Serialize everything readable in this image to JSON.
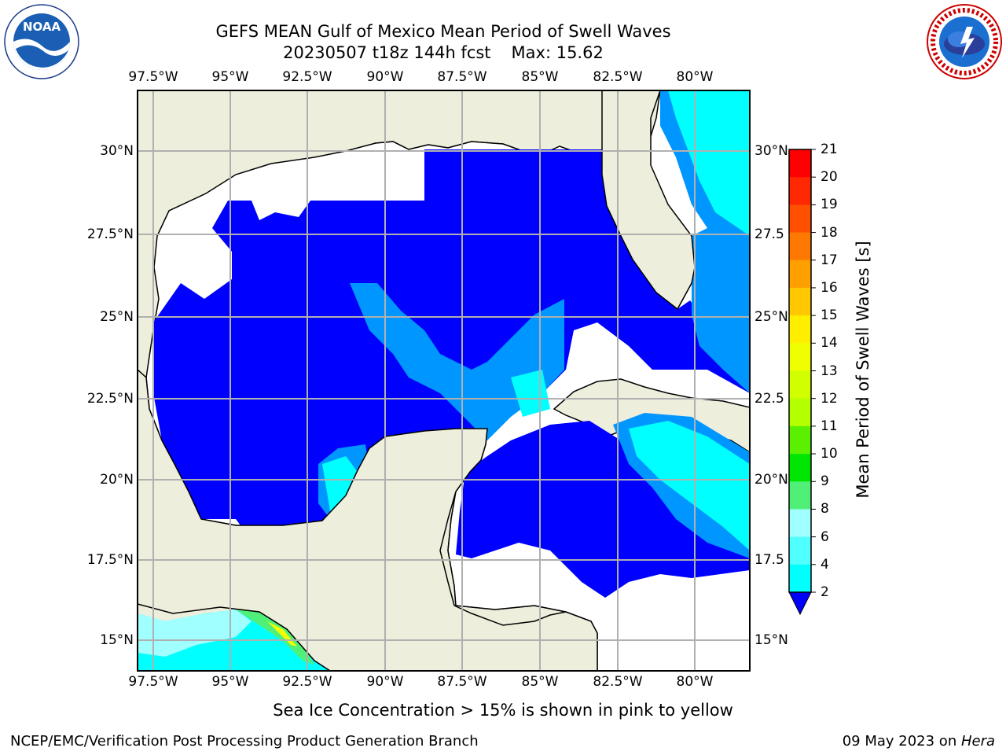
{
  "title_line1": "GEFS MEAN Gulf of Mexico Mean Period of Swell Waves",
  "title_line2_date": "20230507 t18z 144h fcst",
  "title_line2_max": "Max: 15.62",
  "top_lon_labels": [
    "97.5°W",
    "95°W",
    "92.5°W",
    "90°W",
    "87.5°W",
    "85°W",
    "82.5°W",
    "80°W"
  ],
  "bottom_lon_labels": [
    "97.5°W",
    "95°W",
    "92.5°W",
    "90°W",
    "87.5°W",
    "85°W",
    "82.5°W",
    "80°W"
  ],
  "left_lat_labels": [
    "30°N",
    "27.5°N",
    "25°N",
    "22.5°N",
    "20°N",
    "17.5°N",
    "15°N"
  ],
  "right_lat_labels": [
    "30°N",
    "27.5",
    "25°N",
    "22.5",
    "20°N",
    "17.5",
    "15°N"
  ],
  "colorbar": {
    "label": "Mean Period of Swell Waves [s]",
    "ticks": [
      "21",
      "20",
      "19",
      "18",
      "17",
      "16",
      "15",
      "14",
      "13",
      "12",
      "11",
      "10",
      "9",
      "8",
      "6",
      "4",
      "2"
    ],
    "colors": [
      "#ff0000",
      "#ff2800",
      "#ff5000",
      "#ff7800",
      "#ffa000",
      "#ffc800",
      "#ffee00",
      "#f0ff00",
      "#d2ff00",
      "#b4ff00",
      "#5af000",
      "#00e600",
      "#50f078",
      "#a0ffff",
      "#50ffff",
      "#00ffff",
      "#0096ff"
    ],
    "extend_color": "#0000ff"
  },
  "ice_note": "Sea Ice Concentration > 15% is shown in pink to yellow",
  "footer_left": "NCEP/EMC/Verification Post Processing Product Generation Branch",
  "footer_right_date": "09 May 2023 on ",
  "footer_right_host": "Hera",
  "colors": {
    "land": "#eeeedd",
    "water_low": "#0000ff",
    "water_mid": "#0096ff",
    "water_high": "#00ffff",
    "gridline": "#b0b0b0"
  }
}
